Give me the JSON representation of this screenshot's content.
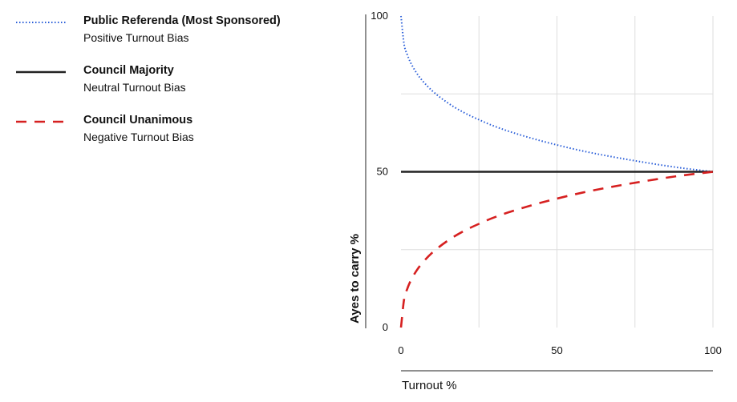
{
  "chart_data": {
    "type": "line",
    "title": "",
    "xlabel": "Turnout %",
    "ylabel": "Ayes to carry %",
    "xlim": [
      0,
      100
    ],
    "ylim": [
      0,
      100
    ],
    "x_ticks": [
      "0",
      "50",
      "100"
    ],
    "y_ticks": [
      "0",
      "50",
      "100"
    ],
    "grid": true,
    "legend_position": "top-left",
    "series": [
      {
        "name": "Public Referenda (Most Sponsored)",
        "subtitle": "Positive Turnout Bias",
        "style": "dotted",
        "color": "#2b5fd9",
        "x": [
          0,
          1,
          2,
          3,
          5,
          7,
          10,
          15,
          20,
          25,
          30,
          40,
          50,
          60,
          70,
          80,
          90,
          100
        ],
        "y": [
          100,
          90.9,
          87.6,
          85.2,
          81.7,
          79.1,
          76.0,
          72.1,
          69.1,
          66.7,
          64.6,
          61.3,
          58.6,
          56.3,
          54.4,
          52.7,
          51.2,
          50.0
        ]
      },
      {
        "name": "Council Majority",
        "subtitle": "Neutral Turnout Bias",
        "style": "solid",
        "color": "#222222",
        "x": [
          0,
          100
        ],
        "y": [
          50,
          50
        ]
      },
      {
        "name": "Council Unanimous",
        "subtitle": "Negative Turnout Bias",
        "style": "dashed",
        "color": "#d62020",
        "x": [
          0,
          1,
          2,
          3,
          5,
          7,
          10,
          15,
          20,
          25,
          30,
          40,
          50,
          60,
          70,
          80,
          90,
          100
        ],
        "y": [
          0,
          9.1,
          12.4,
          14.8,
          18.3,
          20.9,
          24.0,
          27.9,
          30.9,
          33.3,
          35.4,
          38.7,
          41.4,
          43.7,
          45.6,
          47.3,
          48.8,
          50.0
        ]
      }
    ]
  }
}
